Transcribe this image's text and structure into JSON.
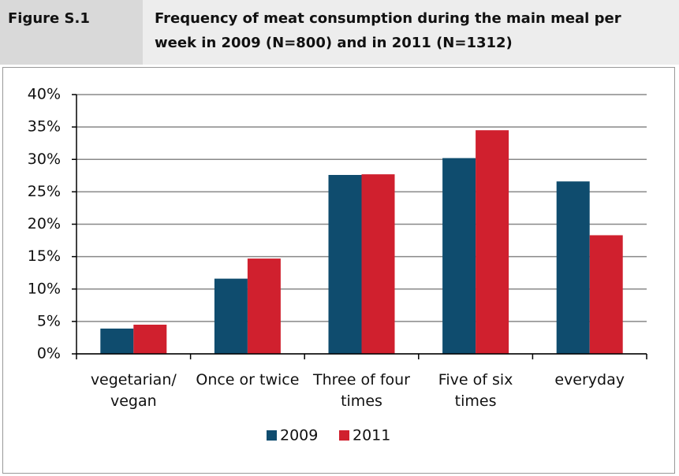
{
  "figure": "Figure S.1",
  "chart_data": {
    "type": "bar",
    "title": "Frequency of meat consumption during the main meal per week in 2009 (N=800) and in 2011 (N=1312)",
    "categories": [
      "vegetarian/ vegan",
      "Once or twice",
      "Three of four times",
      "Five of six times",
      "everyday"
    ],
    "series": [
      {
        "name": "2009",
        "color": "#0f4c6e",
        "values": [
          3.9,
          11.6,
          27.6,
          30.2,
          26.6
        ]
      },
      {
        "name": "2011",
        "color": "#d0202e",
        "values": [
          4.5,
          14.7,
          27.7,
          34.5,
          18.3
        ]
      }
    ],
    "ylim": [
      0,
      40
    ],
    "yticks": [
      {
        "value": 0,
        "label": "0%"
      },
      {
        "value": 5,
        "label": "5%"
      },
      {
        "value": 10,
        "label": "10%"
      },
      {
        "value": 15,
        "label": "15%"
      },
      {
        "value": 20,
        "label": "20%"
      },
      {
        "value": 25,
        "label": "25%"
      },
      {
        "value": 30,
        "label": "30%"
      },
      {
        "value": 35,
        "label": "35%"
      },
      {
        "value": 40,
        "label": "40%"
      }
    ],
    "grid": true,
    "legend": "bottom"
  }
}
